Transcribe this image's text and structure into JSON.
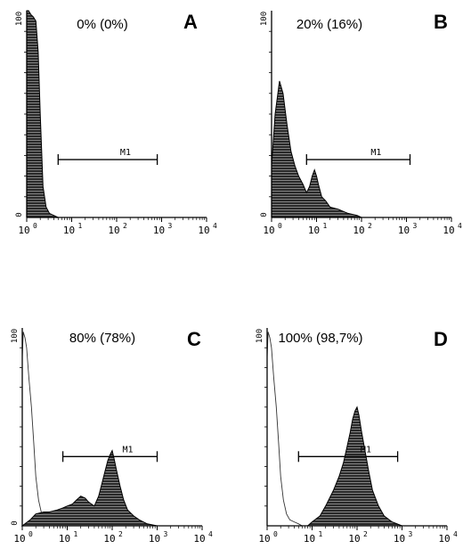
{
  "chart_data": [
    {
      "type": "area",
      "panel": "A",
      "annotation": "0% (0%)",
      "x_scale": "log",
      "xlim": [
        1,
        10000
      ],
      "ylim": [
        0,
        100
      ],
      "x_ticks": [
        "0",
        "1",
        "2",
        "3",
        "4"
      ],
      "y_ticks": [
        "0",
        "100"
      ],
      "marker": {
        "label": "M1",
        "range": [
          5,
          800
        ]
      },
      "series": [
        {
          "style": "filled",
          "x": [
            1,
            1.1,
            1.25,
            1.4,
            1.6,
            1.8,
            2.0,
            2.3,
            2.7,
            3.2,
            4.0,
            5.0
          ],
          "y": [
            100,
            100,
            98,
            97,
            95,
            80,
            50,
            15,
            5,
            2,
            1,
            0
          ]
        }
      ]
    },
    {
      "type": "area",
      "panel": "B",
      "annotation": "20% (16%)",
      "x_scale": "log",
      "xlim": [
        1,
        10000
      ],
      "ylim": [
        0,
        100
      ],
      "x_ticks": [
        "0",
        "1",
        "2",
        "3",
        "4"
      ],
      "y_ticks": [
        "0",
        "100"
      ],
      "marker": {
        "label": "M1",
        "range": [
          6,
          1200
        ]
      },
      "series": [
        {
          "style": "filled",
          "x": [
            1,
            1.2,
            1.5,
            1.8,
            2.2,
            2.7,
            3.3,
            4,
            5,
            6,
            7,
            8,
            9,
            10,
            11,
            13,
            16,
            20,
            30,
            50,
            80,
            100
          ],
          "y": [
            25,
            50,
            66,
            60,
            45,
            32,
            25,
            20,
            16,
            12,
            15,
            20,
            23,
            20,
            16,
            10,
            8,
            5,
            4,
            2,
            1,
            0
          ]
        }
      ]
    },
    {
      "type": "area",
      "panel": "C",
      "annotation": "80% (78%)",
      "x_scale": "log",
      "xlim": [
        1,
        10000
      ],
      "ylim": [
        0,
        100
      ],
      "x_ticks": [
        "0",
        "1",
        "2",
        "3",
        "4"
      ],
      "y_ticks": [
        "0",
        "100"
      ],
      "marker": {
        "label": "M1",
        "range": [
          8,
          1000
        ]
      },
      "series": [
        {
          "style": "outline",
          "x": [
            1,
            1.05,
            1.15,
            1.25,
            1.4,
            1.6,
            1.8,
            2.0,
            2.3,
            2.7,
            3.2,
            4,
            5,
            6
          ],
          "y": [
            85,
            98,
            95,
            90,
            75,
            60,
            42,
            25,
            13,
            6,
            3,
            2,
            1,
            0
          ]
        },
        {
          "style": "filled",
          "x": [
            1,
            1.5,
            2,
            3,
            4,
            6,
            8,
            10,
            13,
            16,
            20,
            25,
            30,
            40,
            50,
            60,
            70,
            80,
            90,
            100,
            110,
            125,
            150,
            180,
            220,
            300,
            400,
            600,
            1000
          ],
          "y": [
            0,
            3,
            6,
            7,
            7,
            8,
            9,
            10,
            11,
            13,
            15,
            14,
            12,
            10,
            15,
            22,
            28,
            33,
            36,
            38,
            34,
            28,
            20,
            13,
            8,
            5,
            3,
            1,
            0
          ]
        }
      ]
    },
    {
      "type": "area",
      "panel": "D",
      "annotation": "100% (98,7%)",
      "x_scale": "log",
      "xlim": [
        1,
        10000
      ],
      "ylim": [
        0,
        100
      ],
      "x_ticks": [
        "0",
        "1",
        "2",
        "3",
        "4"
      ],
      "y_ticks": [
        "100"
      ],
      "marker": {
        "label": "M1",
        "range": [
          5,
          800
        ]
      },
      "series": [
        {
          "style": "outline",
          "x": [
            1,
            1.05,
            1.15,
            1.25,
            1.4,
            1.6,
            1.8,
            2.0,
            2.3,
            2.7,
            3.2,
            4,
            5,
            6
          ],
          "y": [
            85,
            98,
            95,
            90,
            75,
            60,
            42,
            25,
            13,
            6,
            3,
            2,
            1,
            0
          ]
        },
        {
          "style": "filled",
          "x": [
            8,
            10,
            15,
            20,
            30,
            40,
            50,
            60,
            70,
            80,
            90,
            100,
            110,
            125,
            150,
            180,
            220,
            300,
            400,
            600,
            1000
          ],
          "y": [
            0,
            2,
            5,
            10,
            18,
            25,
            32,
            40,
            47,
            54,
            58,
            60,
            56,
            48,
            38,
            28,
            18,
            10,
            5,
            2,
            0
          ]
        }
      ]
    }
  ]
}
